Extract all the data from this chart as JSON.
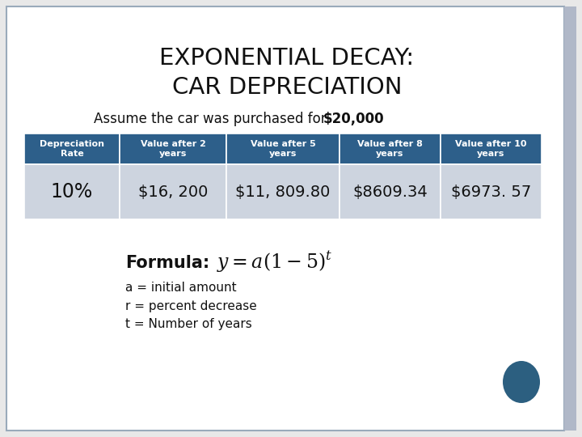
{
  "title_line1": "Exponential Decay:",
  "title_line2": "Car Depreciation",
  "subtitle_normal": "Assume the car was purchased for ",
  "subtitle_bold": "$20,000",
  "bg_color": "#e8e8e8",
  "slide_bg": "#ffffff",
  "header_bg": "#2d5f8a",
  "header_text_color": "#ffffff",
  "row_bg": "#cdd4df",
  "table_headers": [
    "Depreciation\nRate",
    "Value after 2\nyears",
    "Value after 5\nyears",
    "Value after 8\nyears",
    "Value after 10\nyears"
  ],
  "table_row": [
    "10%",
    "$16, 200",
    "$11, 809.80",
    "$8609.34",
    "$6973. 57"
  ],
  "bullet1": "a = initial amount",
  "bullet2": "r = percent decrease",
  "bullet3": "t = Number of years",
  "dot_color": "#2c5f80",
  "right_bar_color": "#b0b8c8",
  "border_color": "#9aaabb"
}
